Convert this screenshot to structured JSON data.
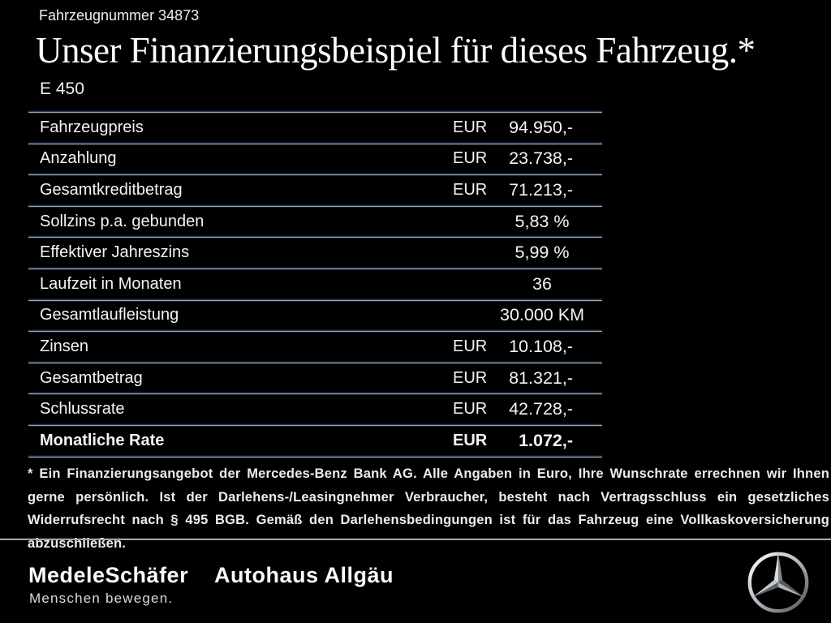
{
  "header": {
    "vehicle_number": "Fahrzeugnummer 34873",
    "title": "Unser Finanzierungsbeispiel für dieses Fahrzeug.*",
    "model": "E 450"
  },
  "table": {
    "rows": [
      {
        "label": "Fahrzeugpreis",
        "currency": "EUR",
        "value": "94.950,-",
        "bold": false
      },
      {
        "label": "Anzahlung",
        "currency": "EUR",
        "value": "23.738,-",
        "bold": false
      },
      {
        "label": "Gesamtkreditbetrag",
        "currency": "EUR",
        "value": "71.213,-",
        "bold": false
      },
      {
        "label": "Sollzins p.a. gebunden",
        "currency": "",
        "value": "5,83 %",
        "bold": false
      },
      {
        "label": "Effektiver Jahreszins",
        "currency": "",
        "value": "5,99 %",
        "bold": false
      },
      {
        "label": "Laufzeit in Monaten",
        "currency": "",
        "value": "36",
        "bold": false
      },
      {
        "label": "Gesamtlaufleistung",
        "currency": "",
        "value": "30.000 KM",
        "bold": false
      },
      {
        "label": "Zinsen",
        "currency": "EUR",
        "value": "10.108,-",
        "bold": false
      },
      {
        "label": "Gesamtbetrag",
        "currency": "EUR",
        "value": "81.321,-",
        "bold": false
      },
      {
        "label": "Schlussrate",
        "currency": "EUR",
        "value": "42.728,-",
        "bold": false
      },
      {
        "label": "Monatliche Rate",
        "currency": "EUR",
        "value": "1.072,-",
        "bold": true
      }
    ]
  },
  "disclaimer": "* Ein Finanzierungsangebot der Mercedes-Benz Bank AG. Alle Angaben in Euro, Ihre Wunschrate errechnen wir Ihnen gerne persönlich. Ist der Darlehens-/Leasingnehmer Verbraucher, besteht nach Vertragsschluss ein gesetzliches Widerrufsrecht nach § 495 BGB. Gemäß den Darlehensbedingungen ist für das Fahrzeug eine Vollkaskoversicherung abzuschließen.",
  "footer": {
    "dealer_name": "MedeleSchäfer",
    "dealer_name_2": "Autohaus Allgäu",
    "tagline": "Menschen bewegen.",
    "brand_logo_icon": "mercedes-benz-star"
  },
  "colors": {
    "background": "#000000",
    "text": "#f4f4f4",
    "divider_blue": "#263a58",
    "divider_silver": "#9fa6ae",
    "footer_separator": "#efefef"
  }
}
